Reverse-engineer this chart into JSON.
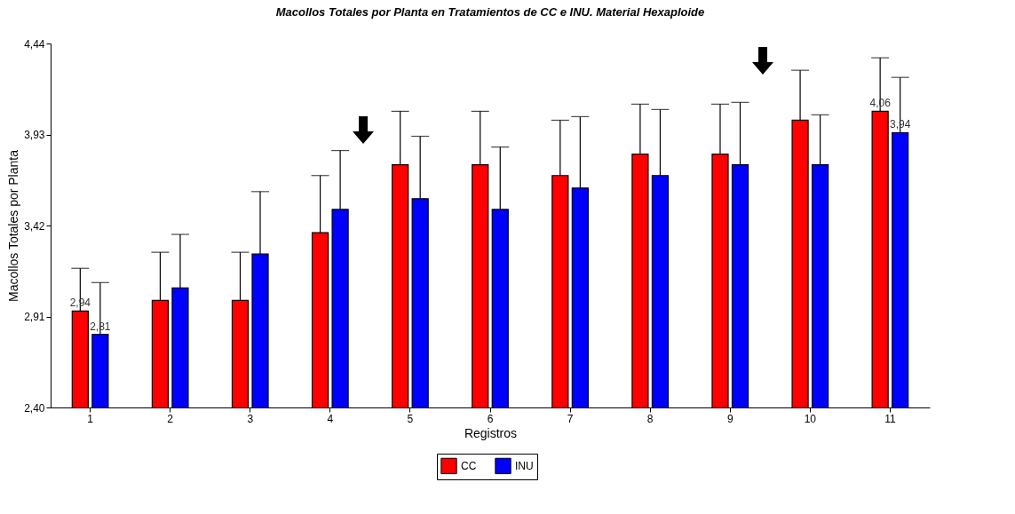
{
  "chart_data": {
    "type": "bar",
    "title": "Macollos Totales por Planta en Tratamientos de CC e INU. Material Hexaploide",
    "xlabel": "Registros",
    "ylabel": "Macollos Totales por Planta",
    "categories": [
      "1",
      "2",
      "3",
      "4",
      "5",
      "6",
      "7",
      "8",
      "9",
      "10",
      "11"
    ],
    "series": [
      {
        "name": "CC",
        "color": "#ff0000",
        "values": [
          2.94,
          3.0,
          3.0,
          3.38,
          3.76,
          3.76,
          3.7,
          3.82,
          3.82,
          4.01,
          4.06
        ],
        "errors": [
          [
            2.94,
            3.18
          ],
          [
            3.0,
            3.27
          ],
          [
            3.0,
            3.27
          ],
          [
            3.38,
            3.7
          ],
          [
            3.76,
            4.06
          ],
          [
            3.76,
            4.06
          ],
          [
            3.7,
            4.01
          ],
          [
            3.82,
            4.1
          ],
          [
            3.82,
            4.1
          ],
          [
            4.01,
            4.29
          ],
          [
            4.06,
            4.36
          ]
        ],
        "value_labels": [
          "2,94",
          null,
          null,
          null,
          null,
          null,
          null,
          null,
          null,
          null,
          "4,06"
        ]
      },
      {
        "name": "INU",
        "color": "#0000ff",
        "values": [
          2.81,
          3.07,
          3.26,
          3.51,
          3.57,
          3.51,
          3.63,
          3.7,
          3.76,
          3.76,
          3.94
        ],
        "errors": [
          [
            2.81,
            3.1
          ],
          [
            3.07,
            3.37
          ],
          [
            3.26,
            3.61
          ],
          [
            3.51,
            3.84
          ],
          [
            3.57,
            3.92
          ],
          [
            3.51,
            3.86
          ],
          [
            3.63,
            4.03
          ],
          [
            3.7,
            4.07
          ],
          [
            3.76,
            4.11
          ],
          [
            3.76,
            4.04
          ],
          [
            3.94,
            4.25
          ]
        ],
        "value_labels": [
          "2,81",
          null,
          null,
          null,
          null,
          null,
          null,
          null,
          null,
          null,
          "3,94"
        ]
      }
    ],
    "ylim": [
      2.4,
      4.44
    ],
    "yticks": [
      {
        "value": 2.4,
        "label": "2,40"
      },
      {
        "value": 2.91,
        "label": "2,91"
      },
      {
        "value": 3.42,
        "label": "3,42"
      },
      {
        "value": 3.93,
        "label": "3,93"
      },
      {
        "value": 4.44,
        "label": "4,44"
      }
    ],
    "grid": false,
    "legend": "bottom"
  }
}
